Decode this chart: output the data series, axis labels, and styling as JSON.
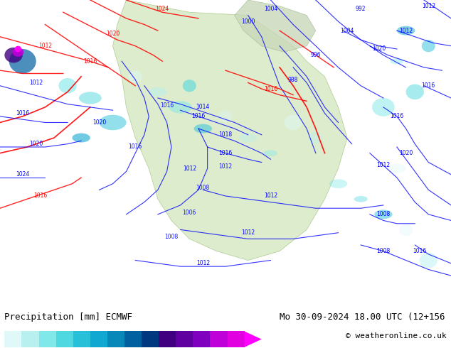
{
  "title_left": "Precipitation [mm] ECMWF",
  "title_right": "Mo 30-09-2024 18.00 UTC (12+156",
  "copyright": "© weatheronline.co.uk",
  "colorbar_levels": [
    0.1,
    0.5,
    1,
    2,
    5,
    10,
    15,
    20,
    25,
    30,
    35,
    40,
    45,
    50
  ],
  "colorbar_colors": [
    "#e0f8f8",
    "#b8f0f0",
    "#80e8e8",
    "#50d8e0",
    "#28c0d8",
    "#10a8d0",
    "#0888b8",
    "#0060a0",
    "#003880",
    "#400080",
    "#6000a0",
    "#8000c0",
    "#c000d8",
    "#e000e0",
    "#ff00ff"
  ],
  "background_color": "#ffffff",
  "map_bg": "#d8ecd8",
  "label_fontsize": 9,
  "title_fontsize": 9
}
